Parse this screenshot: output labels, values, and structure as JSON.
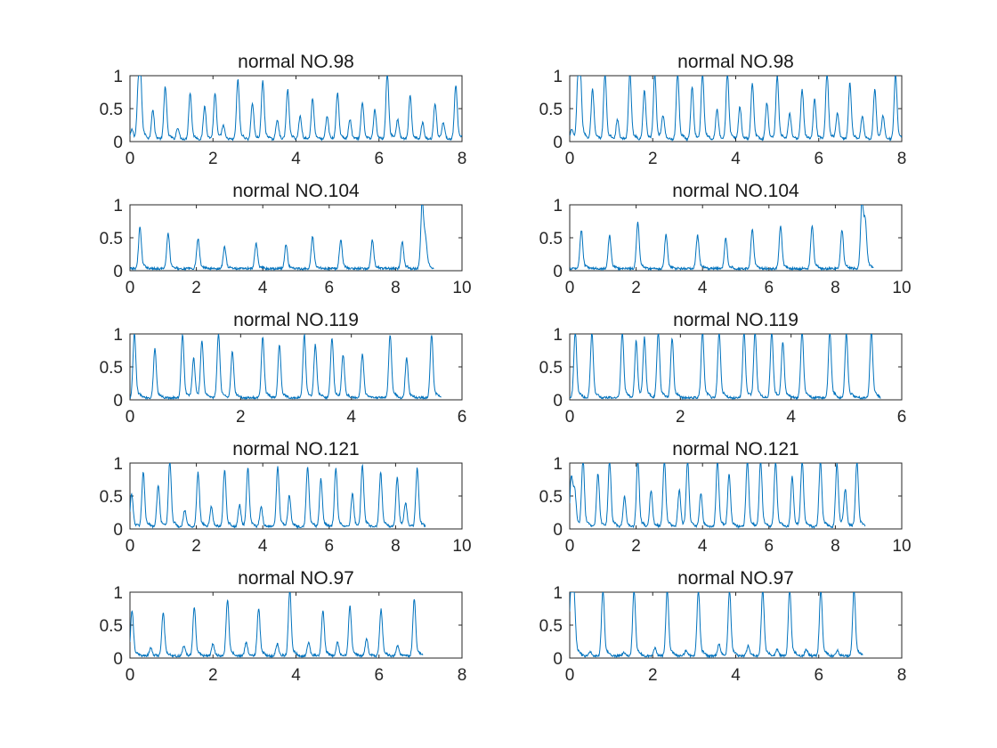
{
  "chart_data": [
    {
      "type": "line",
      "title": "normal NO.98",
      "xlim": [
        0,
        8
      ],
      "ylim": [
        0,
        1
      ],
      "xticks": [
        "0",
        "2",
        "4",
        "6",
        "8"
      ],
      "yticks": [
        "0",
        "0.5",
        "1"
      ],
      "color": "#0072BD",
      "peaks": [
        [
          0.05,
          0.15
        ],
        [
          0.2,
          0.65
        ],
        [
          0.25,
          0.95
        ],
        [
          0.55,
          0.45
        ],
        [
          0.85,
          0.8
        ],
        [
          1.15,
          0.18
        ],
        [
          1.45,
          0.7
        ],
        [
          1.8,
          0.5
        ],
        [
          2.05,
          0.7
        ],
        [
          2.25,
          0.2
        ],
        [
          2.6,
          0.9
        ],
        [
          2.95,
          0.55
        ],
        [
          3.2,
          0.88
        ],
        [
          3.55,
          0.3
        ],
        [
          3.8,
          0.75
        ],
        [
          4.1,
          0.35
        ],
        [
          4.4,
          0.62
        ],
        [
          4.75,
          0.35
        ],
        [
          5.0,
          0.7
        ],
        [
          5.3,
          0.3
        ],
        [
          5.6,
          0.55
        ],
        [
          5.9,
          0.45
        ],
        [
          6.2,
          1.0
        ],
        [
          6.45,
          0.3
        ],
        [
          6.75,
          0.65
        ],
        [
          7.05,
          0.25
        ],
        [
          7.35,
          0.55
        ],
        [
          7.55,
          0.25
        ],
        [
          7.85,
          0.82
        ]
      ]
    },
    {
      "type": "line",
      "title": "normal NO.98",
      "xlim": [
        0,
        8
      ],
      "ylim": [
        0,
        1
      ],
      "xticks": [
        "0",
        "2",
        "4",
        "6",
        "8"
      ],
      "yticks": [
        "0",
        "0.5",
        "1"
      ],
      "color": "#0072BD",
      "peaks": [
        [
          0.05,
          0.15
        ],
        [
          0.2,
          0.8
        ],
        [
          0.25,
          1.0
        ],
        [
          0.55,
          0.75
        ],
        [
          0.85,
          1.0
        ],
        [
          1.15,
          0.3
        ],
        [
          1.45,
          1.0
        ],
        [
          1.8,
          0.75
        ],
        [
          2.05,
          1.0
        ],
        [
          2.25,
          0.35
        ],
        [
          2.6,
          1.0
        ],
        [
          2.95,
          0.8
        ],
        [
          3.2,
          1.0
        ],
        [
          3.55,
          0.45
        ],
        [
          3.8,
          1.0
        ],
        [
          4.1,
          0.5
        ],
        [
          4.4,
          0.85
        ],
        [
          4.75,
          0.55
        ],
        [
          5.0,
          0.95
        ],
        [
          5.3,
          0.4
        ],
        [
          5.6,
          0.75
        ],
        [
          5.9,
          0.6
        ],
        [
          6.2,
          1.0
        ],
        [
          6.45,
          0.4
        ],
        [
          6.75,
          0.85
        ],
        [
          7.05,
          0.35
        ],
        [
          7.35,
          0.75
        ],
        [
          7.55,
          0.35
        ],
        [
          7.85,
          1.0
        ]
      ]
    },
    {
      "type": "line",
      "title": "normal NO.104",
      "xlim": [
        0,
        10
      ],
      "ylim": [
        0,
        1
      ],
      "xticks": [
        "0",
        "2",
        "4",
        "6",
        "8",
        "10"
      ],
      "yticks": [
        "0",
        "0.5",
        "1"
      ],
      "color": "#0072BD",
      "peaks": [
        [
          0.3,
          0.62
        ],
        [
          1.15,
          0.53
        ],
        [
          2.05,
          0.46
        ],
        [
          2.85,
          0.33
        ],
        [
          3.8,
          0.37
        ],
        [
          4.7,
          0.36
        ],
        [
          5.5,
          0.48
        ],
        [
          6.35,
          0.44
        ],
        [
          7.3,
          0.43
        ],
        [
          8.2,
          0.4
        ],
        [
          8.8,
          1.0
        ],
        [
          8.9,
          0.4
        ]
      ]
    },
    {
      "type": "line",
      "title": "normal NO.104",
      "xlim": [
        0,
        10
      ],
      "ylim": [
        0,
        1
      ],
      "xticks": [
        "0",
        "2",
        "4",
        "6",
        "8",
        "10"
      ],
      "yticks": [
        "0",
        "0.5",
        "1"
      ],
      "color": "#0072BD",
      "peaks": [
        [
          0.35,
          0.58
        ],
        [
          1.2,
          0.5
        ],
        [
          2.05,
          0.7
        ],
        [
          2.9,
          0.52
        ],
        [
          3.85,
          0.5
        ],
        [
          4.7,
          0.45
        ],
        [
          5.5,
          0.6
        ],
        [
          6.35,
          0.65
        ],
        [
          7.3,
          0.65
        ],
        [
          8.2,
          0.58
        ],
        [
          8.8,
          1.0
        ],
        [
          8.9,
          0.65
        ]
      ]
    },
    {
      "type": "line",
      "title": "normal NO.119",
      "xlim": [
        0,
        6
      ],
      "ylim": [
        0,
        1
      ],
      "xticks": [
        "0",
        "2",
        "4",
        "6"
      ],
      "yticks": [
        "0",
        "0.5",
        "1"
      ],
      "color": "#0072BD",
      "peaks": [
        [
          0.08,
          0.97
        ],
        [
          0.45,
          0.75
        ],
        [
          0.95,
          0.95
        ],
        [
          1.15,
          0.6
        ],
        [
          1.3,
          0.85
        ],
        [
          1.6,
          0.97
        ],
        [
          1.85,
          0.7
        ],
        [
          2.4,
          0.92
        ],
        [
          2.7,
          0.8
        ],
        [
          3.15,
          0.95
        ],
        [
          3.35,
          0.8
        ],
        [
          3.65,
          0.9
        ],
        [
          3.85,
          0.65
        ],
        [
          4.2,
          0.65
        ],
        [
          4.7,
          0.95
        ],
        [
          5.0,
          0.6
        ],
        [
          5.45,
          0.95
        ]
      ]
    },
    {
      "type": "line",
      "title": "normal NO.119",
      "xlim": [
        0,
        6
      ],
      "ylim": [
        0,
        1
      ],
      "xticks": [
        "0",
        "2",
        "4",
        "6"
      ],
      "yticks": [
        "0",
        "0.5",
        "1"
      ],
      "color": "#0072BD",
      "peaks": [
        [
          0.1,
          1.0
        ],
        [
          0.4,
          0.98
        ],
        [
          0.95,
          1.0
        ],
        [
          1.2,
          0.85
        ],
        [
          1.35,
          0.9
        ],
        [
          1.6,
          1.0
        ],
        [
          1.85,
          0.9
        ],
        [
          2.4,
          1.0
        ],
        [
          2.7,
          1.0
        ],
        [
          3.15,
          1.0
        ],
        [
          3.35,
          1.0
        ],
        [
          3.65,
          1.0
        ],
        [
          3.85,
          0.85
        ],
        [
          4.2,
          1.0
        ],
        [
          4.7,
          1.0
        ],
        [
          5.0,
          0.97
        ],
        [
          5.45,
          1.0
        ]
      ]
    },
    {
      "type": "line",
      "title": "normal NO.121",
      "xlim": [
        0,
        10
      ],
      "ylim": [
        0,
        1
      ],
      "xticks": [
        "0",
        "2",
        "4",
        "6",
        "8",
        "10"
      ],
      "yticks": [
        "0",
        "0.5",
        "1"
      ],
      "color": "#0072BD",
      "peaks": [
        [
          0.05,
          0.5
        ],
        [
          0.4,
          0.82
        ],
        [
          0.85,
          0.63
        ],
        [
          1.2,
          1.0
        ],
        [
          1.65,
          0.25
        ],
        [
          2.05,
          0.82
        ],
        [
          2.45,
          0.3
        ],
        [
          2.85,
          0.86
        ],
        [
          3.3,
          0.33
        ],
        [
          3.55,
          0.88
        ],
        [
          3.95,
          0.3
        ],
        [
          4.45,
          0.9
        ],
        [
          4.8,
          0.47
        ],
        [
          5.35,
          0.9
        ],
        [
          5.75,
          0.72
        ],
        [
          6.2,
          0.88
        ],
        [
          6.7,
          0.5
        ],
        [
          7.0,
          0.92
        ],
        [
          7.55,
          0.82
        ],
        [
          8.05,
          0.75
        ],
        [
          8.3,
          0.35
        ],
        [
          8.65,
          0.88
        ]
      ]
    },
    {
      "type": "line",
      "title": "normal NO.121",
      "xlim": [
        0,
        10
      ],
      "ylim": [
        0,
        1
      ],
      "xticks": [
        "0",
        "2",
        "4",
        "6",
        "8",
        "10"
      ],
      "yticks": [
        "0",
        "0.5",
        "1"
      ],
      "color": "#0072BD",
      "peaks": [
        [
          0.05,
          0.75
        ],
        [
          0.15,
          0.5
        ],
        [
          0.4,
          1.0
        ],
        [
          0.85,
          0.8
        ],
        [
          1.2,
          1.0
        ],
        [
          1.65,
          0.45
        ],
        [
          2.05,
          1.0
        ],
        [
          2.45,
          0.55
        ],
        [
          2.85,
          1.0
        ],
        [
          3.3,
          0.55
        ],
        [
          3.55,
          1.0
        ],
        [
          3.95,
          0.5
        ],
        [
          4.45,
          1.0
        ],
        [
          4.8,
          0.8
        ],
        [
          5.35,
          1.0
        ],
        [
          5.75,
          1.0
        ],
        [
          6.2,
          1.0
        ],
        [
          6.7,
          0.75
        ],
        [
          7.0,
          1.0
        ],
        [
          7.55,
          1.0
        ],
        [
          8.05,
          0.95
        ],
        [
          8.3,
          0.55
        ],
        [
          8.65,
          1.0
        ]
      ]
    },
    {
      "type": "line",
      "title": "normal NO.97",
      "xlim": [
        0,
        8
      ],
      "ylim": [
        0,
        1
      ],
      "xticks": [
        "0",
        "2",
        "4",
        "6",
        "8"
      ],
      "yticks": [
        "0",
        "0.5",
        "1"
      ],
      "color": "#0072BD",
      "peaks": [
        [
          0.05,
          0.68
        ],
        [
          0.5,
          0.12
        ],
        [
          0.8,
          0.65
        ],
        [
          1.3,
          0.15
        ],
        [
          1.55,
          0.73
        ],
        [
          2.0,
          0.18
        ],
        [
          2.35,
          0.85
        ],
        [
          2.8,
          0.2
        ],
        [
          3.1,
          0.72
        ],
        [
          3.55,
          0.18
        ],
        [
          3.85,
          1.0
        ],
        [
          4.3,
          0.2
        ],
        [
          4.65,
          0.68
        ],
        [
          5.0,
          0.2
        ],
        [
          5.3,
          0.75
        ],
        [
          5.7,
          0.25
        ],
        [
          6.05,
          0.7
        ],
        [
          6.45,
          0.15
        ],
        [
          6.85,
          0.87
        ]
      ]
    },
    {
      "type": "line",
      "title": "normal NO.97",
      "xlim": [
        0,
        8
      ],
      "ylim": [
        0,
        1
      ],
      "xticks": [
        "0",
        "2",
        "4",
        "6",
        "8"
      ],
      "yticks": [
        "0",
        "0.5",
        "1"
      ],
      "color": "#0072BD",
      "peaks": [
        [
          0.03,
          1.0
        ],
        [
          0.1,
          0.9
        ],
        [
          0.5,
          0.06
        ],
        [
          0.8,
          1.0
        ],
        [
          1.3,
          0.05
        ],
        [
          1.55,
          1.0
        ],
        [
          2.05,
          0.12
        ],
        [
          2.35,
          1.0
        ],
        [
          2.8,
          0.08
        ],
        [
          3.1,
          1.0
        ],
        [
          3.6,
          0.18
        ],
        [
          3.85,
          1.0
        ],
        [
          4.3,
          0.15
        ],
        [
          4.65,
          1.0
        ],
        [
          5.0,
          0.1
        ],
        [
          5.3,
          1.0
        ],
        [
          5.7,
          0.1
        ],
        [
          6.05,
          1.0
        ],
        [
          6.45,
          0.08
        ],
        [
          6.85,
          1.0
        ]
      ]
    }
  ]
}
